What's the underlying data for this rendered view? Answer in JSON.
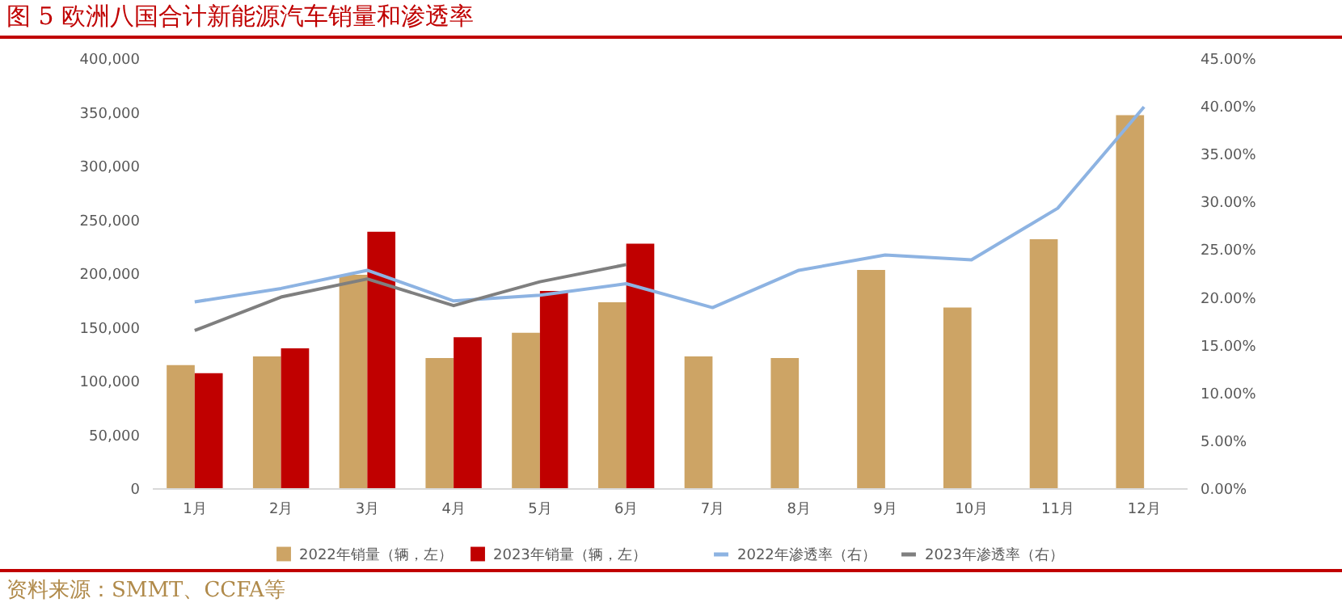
{
  "chart_data": {
    "type": "bar",
    "title": "图 5 欧洲八国合计新能源汽车销量和渗透率",
    "categories": [
      "1月",
      "2月",
      "3月",
      "4月",
      "5月",
      "6月",
      "7月",
      "8月",
      "9月",
      "10月",
      "11月",
      "12月"
    ],
    "series": [
      {
        "name": "2022年销量（辆，左）",
        "color": "#cda465",
        "values": [
          114500,
          122500,
          198500,
          121000,
          144500,
          173000,
          122500,
          121000,
          203000,
          168000,
          231500,
          347000
        ]
      },
      {
        "name": "2023年销量（辆，左）",
        "color": "#c00000",
        "values": [
          107000,
          130000,
          238500,
          140500,
          183500,
          227500,
          null,
          null,
          null,
          null,
          null,
          null
        ]
      },
      {
        "name": "2022年渗透率（右）",
        "color": "#8db3e2",
        "type": "line",
        "axis": "y2",
        "values": [
          19.5,
          20.9,
          22.8,
          19.6,
          20.2,
          21.4,
          18.9,
          22.8,
          24.4,
          23.9,
          29.3,
          39.9
        ]
      },
      {
        "name": "2023年渗透率（右）",
        "color": "#7f7f7f",
        "type": "line",
        "axis": "y2",
        "values": [
          16.5,
          20.0,
          21.9,
          19.1,
          21.6,
          23.4,
          null,
          null,
          null,
          null,
          null,
          null
        ]
      }
    ],
    "ylim": [
      0,
      400000
    ],
    "yticks": [
      {
        "value": 0,
        "label": "0"
      },
      {
        "value": 50000,
        "label": "50,000"
      },
      {
        "value": 100000,
        "label": "100,000"
      },
      {
        "value": 150000,
        "label": "150,000"
      },
      {
        "value": 200000,
        "label": "200,000"
      },
      {
        "value": 250000,
        "label": "250,000"
      },
      {
        "value": 300000,
        "label": "300,000"
      },
      {
        "value": 350000,
        "label": "350,000"
      },
      {
        "value": 400000,
        "label": "400,000"
      }
    ],
    "y2lim": [
      0,
      45
    ],
    "y2ticks": [
      {
        "value": 0,
        "label": "0.00%"
      },
      {
        "value": 5,
        "label": "5.00%"
      },
      {
        "value": 10,
        "label": "10.00%"
      },
      {
        "value": 15,
        "label": "15.00%"
      },
      {
        "value": 20,
        "label": "20.00%"
      },
      {
        "value": 25,
        "label": "25.00%"
      },
      {
        "value": 30,
        "label": "30.00%"
      },
      {
        "value": 35,
        "label": "35.00%"
      },
      {
        "value": 40,
        "label": "40.00%"
      },
      {
        "value": 45,
        "label": "45.00%"
      }
    ],
    "grid": false,
    "legend": "bottom",
    "annotations": [
      "资料来源：SMMT、CCFA等"
    ]
  }
}
